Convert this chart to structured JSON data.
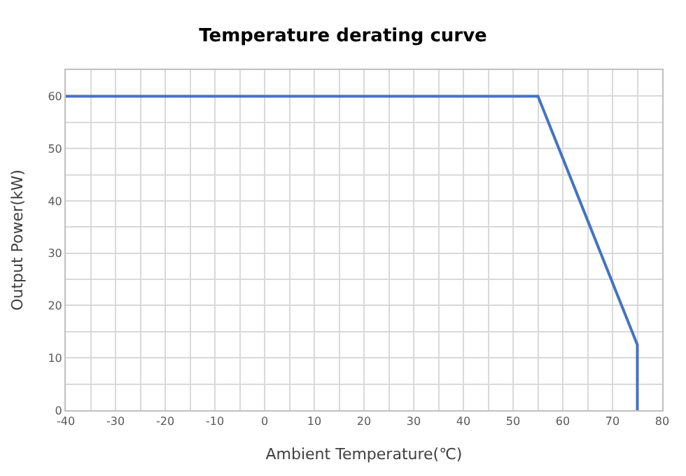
{
  "chart_data": {
    "type": "line",
    "title": "Temperature derating curve",
    "xlabel": "Ambient Temperature(℃)",
    "ylabel": "Output Power(kW)",
    "x": [
      -40,
      55,
      75,
      75
    ],
    "series": [
      {
        "color": "#4472c4",
        "values": [
          60,
          60,
          12.5,
          0
        ]
      }
    ],
    "xlim": [
      -40,
      80
    ],
    "xticks": [
      -40,
      {
        "value": -35,
        "label": null
      },
      -30,
      {
        "value": -25,
        "label": null
      },
      -20,
      {
        "value": -15,
        "label": null
      },
      -10,
      {
        "value": -5,
        "label": null
      },
      0,
      {
        "value": 5,
        "label": null
      },
      10,
      {
        "value": 15,
        "label": null
      },
      20,
      {
        "value": 25,
        "label": null
      },
      30,
      {
        "value": 35,
        "label": null
      },
      40,
      {
        "value": 45,
        "label": null
      },
      50,
      {
        "value": 55,
        "label": null
      },
      60,
      {
        "value": 65,
        "label": null
      },
      70,
      {
        "value": 75,
        "label": null
      },
      80
    ],
    "ylim": [
      0,
      65
    ],
    "yticks": [
      0,
      {
        "value": 5,
        "label": null
      },
      10,
      {
        "value": 15,
        "label": null
      },
      20,
      {
        "value": 25,
        "label": null
      },
      30,
      {
        "value": 35,
        "label": null
      },
      40,
      {
        "value": 45,
        "label": null
      },
      50,
      {
        "value": 55,
        "label": null
      },
      60,
      {
        "value": 65,
        "label": null
      }
    ],
    "grid": true,
    "marker": "none",
    "line_style": "solid"
  }
}
